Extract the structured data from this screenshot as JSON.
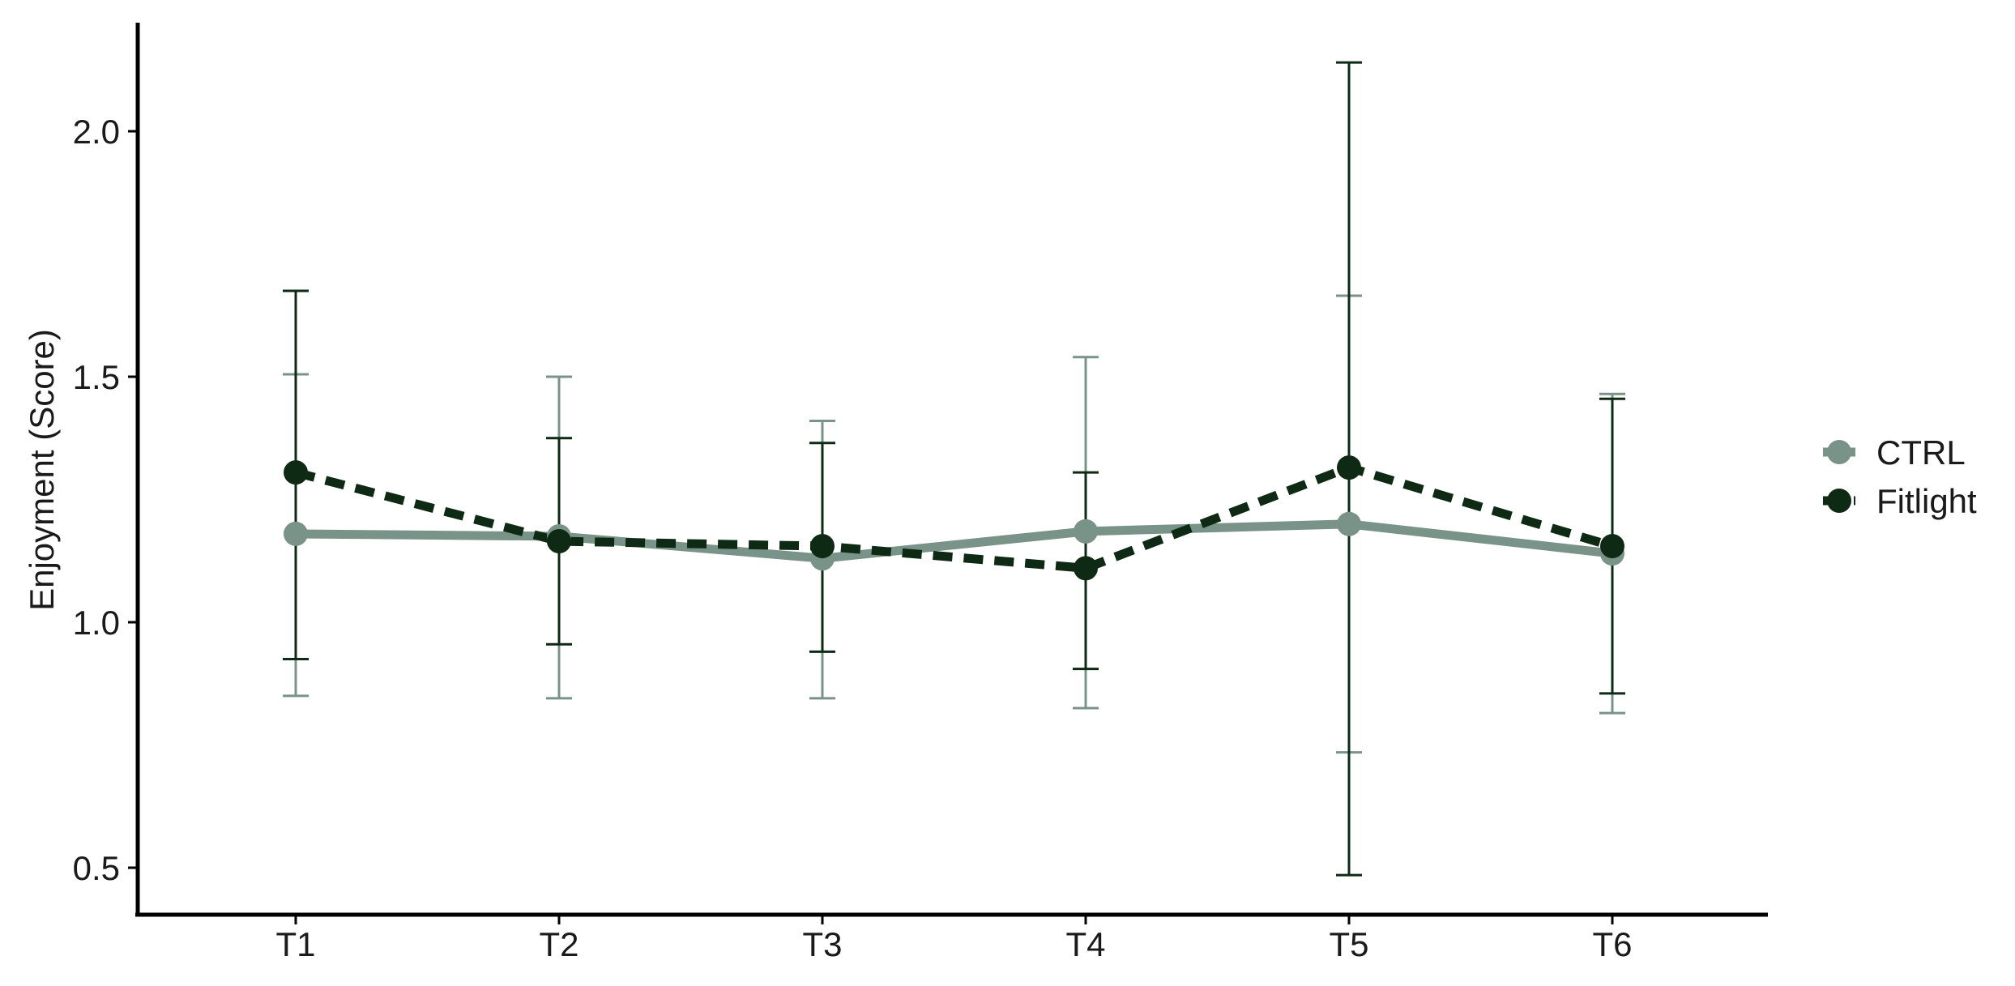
{
  "chart_data": {
    "type": "line",
    "categories": [
      "T1",
      "T2",
      "T3",
      "T4",
      "T5",
      "T6"
    ],
    "xlabel": "",
    "ylabel": "Enjoyment (Score)",
    "ylim": [
      0.42,
      2.22
    ],
    "yticks": [
      0.5,
      1.0,
      1.5,
      2.0
    ],
    "ytick_labels": [
      "0.5",
      "1.0",
      "1.5",
      "2.0"
    ],
    "grid": false,
    "legend": "right",
    "series": [
      {
        "name": "CTRL",
        "color": "#7a9389",
        "line_style": "solid",
        "values": [
          1.18,
          1.175,
          1.13,
          1.185,
          1.2,
          1.14
        ],
        "err_low": [
          0.85,
          0.845,
          0.845,
          0.825,
          0.735,
          0.815
        ],
        "err_high": [
          1.505,
          1.5,
          1.41,
          1.54,
          1.665,
          1.465
        ]
      },
      {
        "name": "Fitlight",
        "color": "#0f2a14",
        "line_style": "dashed",
        "values": [
          1.305,
          1.165,
          1.155,
          1.11,
          1.315,
          1.155
        ],
        "err_low": [
          0.925,
          0.955,
          0.94,
          0.905,
          0.485,
          0.855
        ],
        "err_high": [
          1.675,
          1.375,
          1.365,
          1.305,
          2.14,
          1.455
        ]
      }
    ]
  }
}
